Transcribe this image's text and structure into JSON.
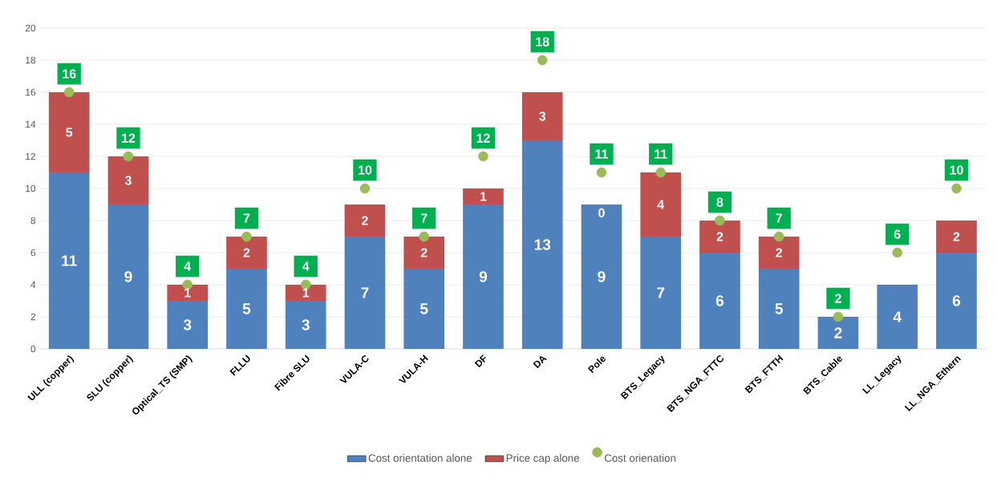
{
  "chart_data": {
    "type": "bar",
    "stacked": true,
    "categories": [
      "ULL (copper)",
      "SLU (copper)",
      "Optical_TS (SMP)",
      "FLLU",
      "Fibre SLU",
      "VULA-C",
      "VULA-H",
      "DF",
      "DA",
      "Pole",
      "BTS_Legacy",
      "BTS_NGA_FTTC",
      "BTS_FTTH",
      "BTS_Cable",
      "LL_Legacy",
      "LL_NGA_Ethern"
    ],
    "ylim": [
      0,
      20
    ],
    "yticks": [
      0,
      2,
      4,
      6,
      8,
      10,
      12,
      14,
      16,
      18,
      20
    ],
    "grid": "y",
    "legend": "bottom",
    "series": [
      {
        "name": "Cost orientation alone",
        "color": "#4f81bd",
        "values": [
          11,
          9,
          3,
          5,
          3,
          7,
          5,
          9,
          13,
          9,
          7,
          6,
          5,
          2,
          4,
          6
        ],
        "value_labels": [
          "11",
          "9",
          "3",
          "5",
          "3",
          "7",
          "5",
          "9",
          "13",
          "9",
          "7",
          "6",
          "5",
          "2",
          "4",
          "6"
        ]
      },
      {
        "name": "Price cap alone",
        "color": "#c0504d",
        "values": [
          5,
          3,
          1,
          2,
          1,
          2,
          2,
          1,
          3,
          0,
          4,
          2,
          2,
          0,
          0,
          2
        ],
        "value_labels": [
          "5",
          "3",
          "1",
          "2",
          "1",
          "2",
          "2",
          "1",
          "3",
          "0",
          "4",
          "2",
          "2",
          null,
          null,
          "2"
        ]
      },
      {
        "name": "Cost orienation",
        "type": "scatter",
        "marker": "circle",
        "color": "#9bbb59",
        "values": [
          16,
          12,
          4,
          7,
          4,
          10,
          7,
          12,
          18,
          11,
          11,
          8,
          7,
          2,
          6,
          10
        ],
        "value_labels": [
          "16",
          "12",
          "4",
          "7",
          "4",
          "10",
          "7",
          "12",
          "18",
          "11",
          "11",
          "8",
          "7",
          "2",
          "6",
          "10"
        ]
      }
    ]
  }
}
